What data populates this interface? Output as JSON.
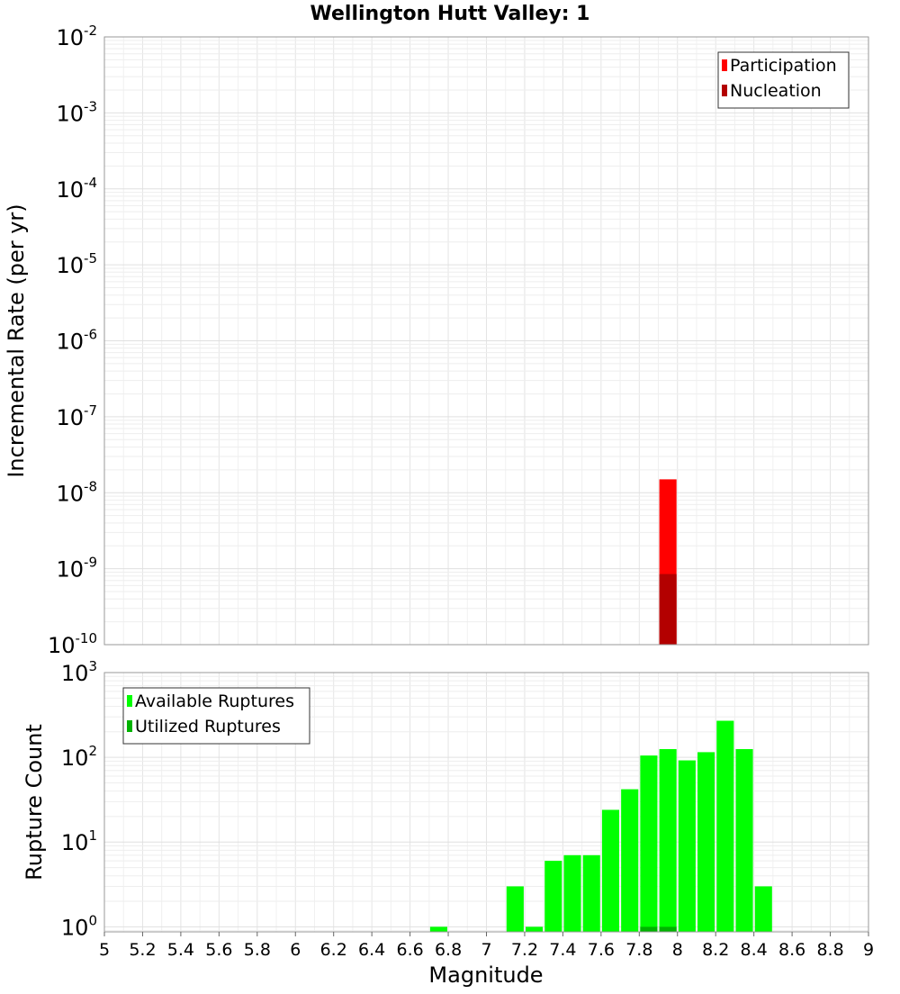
{
  "chart_data": [
    {
      "id": "top",
      "type": "bar",
      "title": "Wellington Hutt Valley: 1",
      "ylabel": "Incremental Rate (per yr)",
      "yscale": "log",
      "ylim_exp": [
        -10,
        -2
      ],
      "ytick_exponents": [
        "-10",
        "-9",
        "-8",
        "-7",
        "-6",
        "-5",
        "-4",
        "-3",
        "-2"
      ],
      "xlim": [
        5,
        9
      ],
      "bar_width": 0.09,
      "legend": {
        "placement": "top-right",
        "entries": [
          {
            "name": "Participation",
            "color": "#ff0000"
          },
          {
            "name": "Nucleation",
            "color": "#b30000"
          }
        ]
      },
      "series": [
        {
          "name": "Participation",
          "color": "#ff0000",
          "x": [
            7.95
          ],
          "values": [
            1.5e-08
          ]
        },
        {
          "name": "Nucleation",
          "color": "#b30000",
          "x": [
            7.95
          ],
          "values": [
            8.5e-10
          ]
        }
      ]
    },
    {
      "id": "bottom",
      "type": "bar",
      "ylabel": "Rupture Count",
      "xlabel": "Magnitude",
      "yscale": "log",
      "ylim_exp": [
        -0.06,
        3
      ],
      "ytick_exponents": [
        "0",
        "1",
        "2",
        "3"
      ],
      "xlim": [
        5,
        9
      ],
      "bar_width": 0.09,
      "xticks": [
        "5",
        "5.2",
        "5.4",
        "5.6",
        "5.8",
        "6",
        "6.2",
        "6.4",
        "6.6",
        "6.8",
        "7",
        "7.2",
        "7.4",
        "7.6",
        "7.8",
        "8",
        "8.2",
        "8.4",
        "8.6",
        "8.8",
        "9"
      ],
      "legend": {
        "placement": "top-left",
        "entries": [
          {
            "name": "Available Ruptures",
            "color": "#00ff00"
          },
          {
            "name": "Utilized Ruptures",
            "color": "#00b300"
          }
        ]
      },
      "series": [
        {
          "name": "Available Ruptures",
          "color": "#00ff00",
          "x": [
            6.75,
            7.15,
            7.25,
            7.35,
            7.45,
            7.55,
            7.65,
            7.75,
            7.85,
            7.95,
            8.05,
            8.15,
            8.25,
            8.35,
            8.45
          ],
          "values": [
            1,
            3,
            1,
            6,
            7,
            7,
            24,
            42,
            105,
            125,
            92,
            115,
            270,
            125,
            3
          ]
        },
        {
          "name": "Utilized Ruptures",
          "color": "#00b300",
          "x": [
            7.85,
            7.95
          ],
          "values": [
            1,
            1
          ]
        }
      ]
    }
  ]
}
